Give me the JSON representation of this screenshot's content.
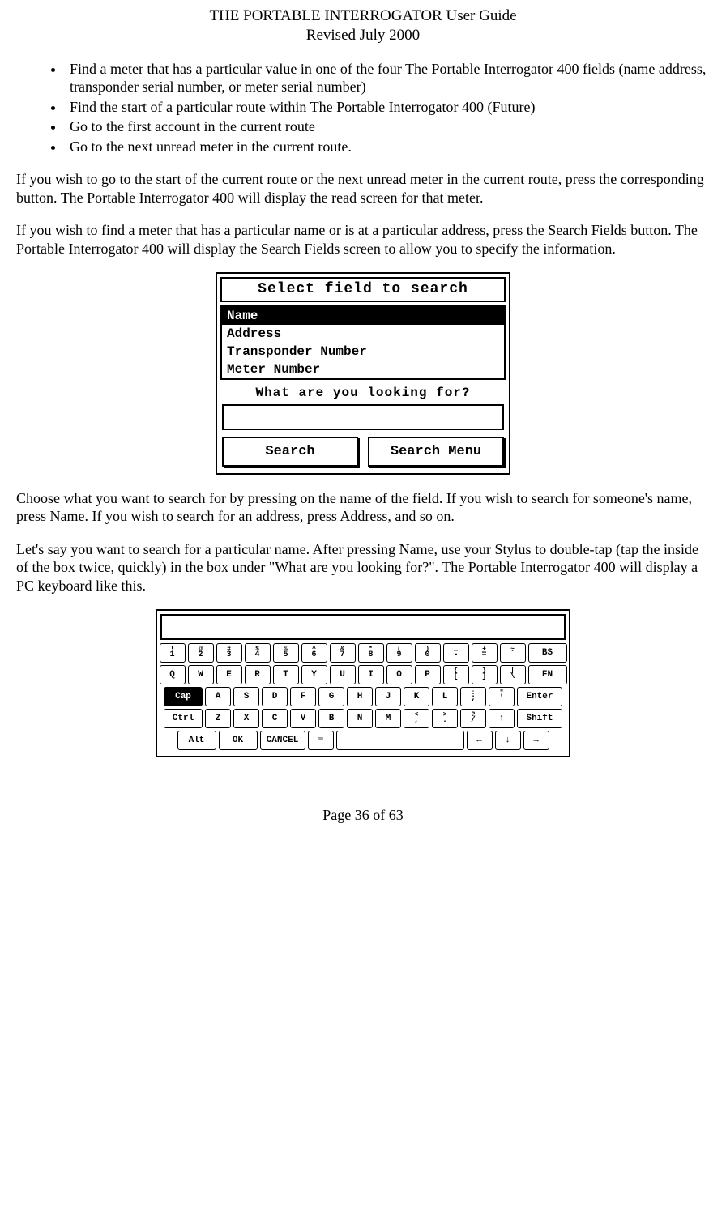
{
  "header": {
    "line1": "THE PORTABLE INTERROGATOR User Guide",
    "line2": "Revised July 2000"
  },
  "bullets": [
    "Find a meter that has a particular value in one of the four The Portable Interrogator 400 fields (name address, transponder serial number, or meter serial number)",
    "Find the start of a particular route within The Portable Interrogator 400 (Future)",
    "Go to the first account in the current route",
    "Go to the next unread meter in the current route."
  ],
  "para1": "If you wish to go to the start of the current route or the next unread meter in the current route, press the corresponding button.  The Portable Interrogator 400 will display the read screen for that meter.",
  "para2": "If you wish to find a meter that has a particular name or is at a particular address, press the Search Fields button.  The Portable Interrogator 400 will display the Search Fields screen to allow you to specify the information.",
  "search": {
    "title": "Select field to search",
    "options": [
      "Name",
      "Address",
      "Transponder Number",
      "Meter Number"
    ],
    "selected_index": 0,
    "prompt": "What are you looking for?",
    "input_value": "",
    "btn_search": "Search",
    "btn_menu": "Search Menu"
  },
  "para3": "Choose what you want to search for by pressing on the name of the field.  If you wish to search for someone's name, press Name.  If you wish to search for an address, press Address, and so on.",
  "para4": "Let's say you want to search for a particular name.  After pressing Name, use your Stylus to double-tap (tap the inside of the box twice, quickly) in the box under \"What are you looking for?\".  The Portable Interrogator 400 will display a PC keyboard like this.",
  "keyboard": {
    "row1": [
      {
        "t": "!",
        "b": "1"
      },
      {
        "t": "@",
        "b": "2"
      },
      {
        "t": "#",
        "b": "3"
      },
      {
        "t": "$",
        "b": "4"
      },
      {
        "t": "%",
        "b": "5"
      },
      {
        "t": "^",
        "b": "6"
      },
      {
        "t": "&",
        "b": "7"
      },
      {
        "t": "*",
        "b": "8"
      },
      {
        "t": "(",
        "b": "9"
      },
      {
        "t": ")",
        "b": "0"
      },
      {
        "t": "_",
        "b": "-"
      },
      {
        "t": "+",
        "b": "="
      },
      {
        "t": "~",
        "b": "`"
      },
      {
        "label": "BS",
        "wide": true
      }
    ],
    "row2": [
      {
        "label": "Q"
      },
      {
        "label": "W"
      },
      {
        "label": "E"
      },
      {
        "label": "R"
      },
      {
        "label": "T"
      },
      {
        "label": "Y"
      },
      {
        "label": "U"
      },
      {
        "label": "I"
      },
      {
        "label": "O"
      },
      {
        "label": "P"
      },
      {
        "t": "{",
        "b": "["
      },
      {
        "t": "}",
        "b": "]"
      },
      {
        "t": "|",
        "b": "\\"
      },
      {
        "label": "FN",
        "wide": true
      }
    ],
    "row3": [
      {
        "label": "Cap",
        "wide": true,
        "inv": true
      },
      {
        "label": "A"
      },
      {
        "label": "S"
      },
      {
        "label": "D"
      },
      {
        "label": "F"
      },
      {
        "label": "G"
      },
      {
        "label": "H"
      },
      {
        "label": "J"
      },
      {
        "label": "K"
      },
      {
        "label": "L"
      },
      {
        "t": ":",
        "b": ";"
      },
      {
        "t": "\"",
        "b": "'"
      },
      {
        "label": "Enter",
        "wider": true
      }
    ],
    "row4": [
      {
        "label": "Ctrl",
        "wide": true
      },
      {
        "label": "Z"
      },
      {
        "label": "X"
      },
      {
        "label": "C"
      },
      {
        "label": "V"
      },
      {
        "label": "B"
      },
      {
        "label": "N"
      },
      {
        "label": "M"
      },
      {
        "t": "<",
        "b": ","
      },
      {
        "t": ">",
        "b": "."
      },
      {
        "t": "?",
        "b": "/"
      },
      {
        "label": "↑"
      },
      {
        "label": "Shift",
        "wider": true
      }
    ],
    "row5": [
      {
        "label": "Alt",
        "wide": true
      },
      {
        "label": "OK",
        "wide": true
      },
      {
        "label": "CANCEL",
        "wider": true
      },
      {
        "label": "⌨"
      },
      {
        "space": true
      },
      {
        "label": "←"
      },
      {
        "label": "↓"
      },
      {
        "label": "→"
      }
    ]
  },
  "footer": "Page 36 of 63"
}
